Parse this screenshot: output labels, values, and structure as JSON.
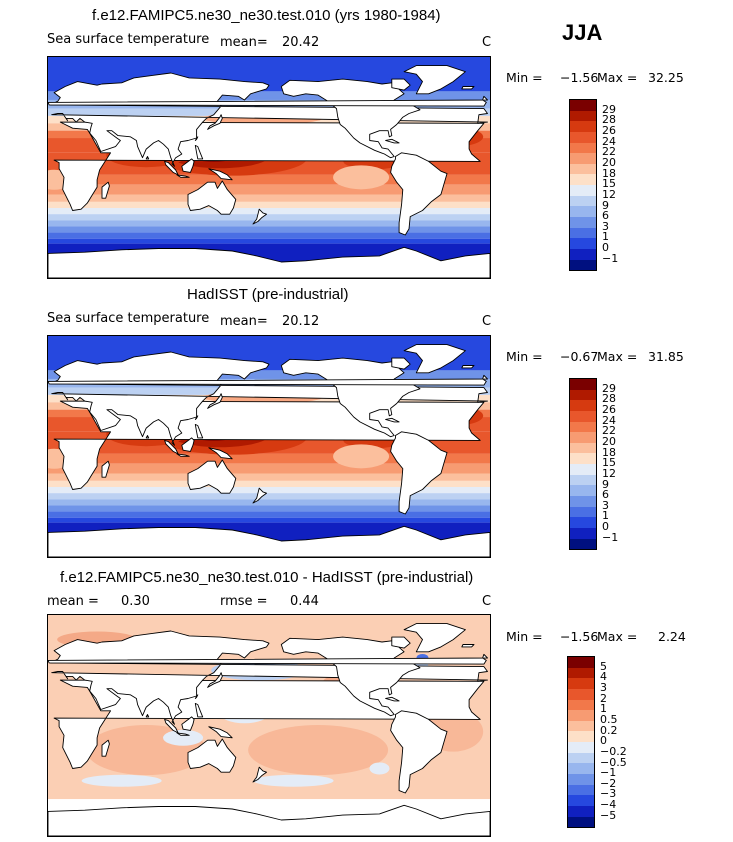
{
  "season": "JJA",
  "panels": [
    {
      "title": "f.e12.FAMIPC5.ne30_ne30.test.010 (yrs 1980-1984)",
      "left_text": "Sea surface temperature",
      "mean_label": "mean=",
      "mean_value": "20.42",
      "rmse_label": "",
      "rmse_value": "",
      "units": "C",
      "min_label": "Min =",
      "min_value": "−1.56",
      "max_label": "Max =",
      "max_value": "32.25",
      "field": "sst",
      "colorbar": {
        "colors": [
          "#7a0000",
          "#b01a00",
          "#d63a10",
          "#e8572c",
          "#f2784a",
          "#f79b72",
          "#fbbf9d",
          "#fde0c8",
          "#e4ecf7",
          "#bcd1f2",
          "#98b6ee",
          "#6f93e8",
          "#4a6fe4",
          "#2648df",
          "#1020c0",
          "#001080"
        ],
        "labels": [
          "29",
          "28",
          "26",
          "24",
          "22",
          "20",
          "18",
          "15",
          "12",
          "9",
          "6",
          "3",
          "1",
          "0",
          "−1"
        ]
      }
    },
    {
      "title": "HadISST (pre-industrial)",
      "left_text": "Sea surface temperature",
      "mean_label": "mean=",
      "mean_value": "20.12",
      "rmse_label": "",
      "rmse_value": "",
      "units": "C",
      "min_label": "Min =",
      "min_value": "−0.67",
      "max_label": "Max =",
      "max_value": "31.85",
      "field": "sst",
      "colorbar": {
        "colors": [
          "#7a0000",
          "#b01a00",
          "#d63a10",
          "#e8572c",
          "#f2784a",
          "#f79b72",
          "#fbbf9d",
          "#fde0c8",
          "#e4ecf7",
          "#bcd1f2",
          "#98b6ee",
          "#6f93e8",
          "#4a6fe4",
          "#2648df",
          "#1020c0",
          "#001080"
        ],
        "labels": [
          "29",
          "28",
          "26",
          "24",
          "22",
          "20",
          "18",
          "15",
          "12",
          "9",
          "6",
          "3",
          "1",
          "0",
          "−1"
        ]
      }
    },
    {
      "title": "f.e12.FAMIPC5.ne30_ne30.test.010 - HadISST (pre-industrial)",
      "left_text": "",
      "mean_label": "mean =",
      "mean_value": "0.30",
      "rmse_label": "rmse =",
      "rmse_value": "0.44",
      "units": "C",
      "min_label": "Min =",
      "min_value": "−1.56",
      "max_label": "Max =",
      "max_value": "2.24",
      "field": "diff",
      "colorbar": {
        "colors": [
          "#7a0000",
          "#b01a00",
          "#d63a10",
          "#e8572c",
          "#f2784a",
          "#f79b72",
          "#fbbf9d",
          "#fde0c8",
          "#e4ecf7",
          "#bcd1f2",
          "#98b6ee",
          "#6f93e8",
          "#4a6fe4",
          "#2648df",
          "#1020c0",
          "#001080"
        ],
        "labels": [
          "5",
          "4",
          "3",
          "2",
          "1",
          "0.5",
          "0.2",
          "0",
          "−0.2",
          "−0.5",
          "−1",
          "−2",
          "−3",
          "−4",
          "−5"
        ]
      }
    }
  ]
}
